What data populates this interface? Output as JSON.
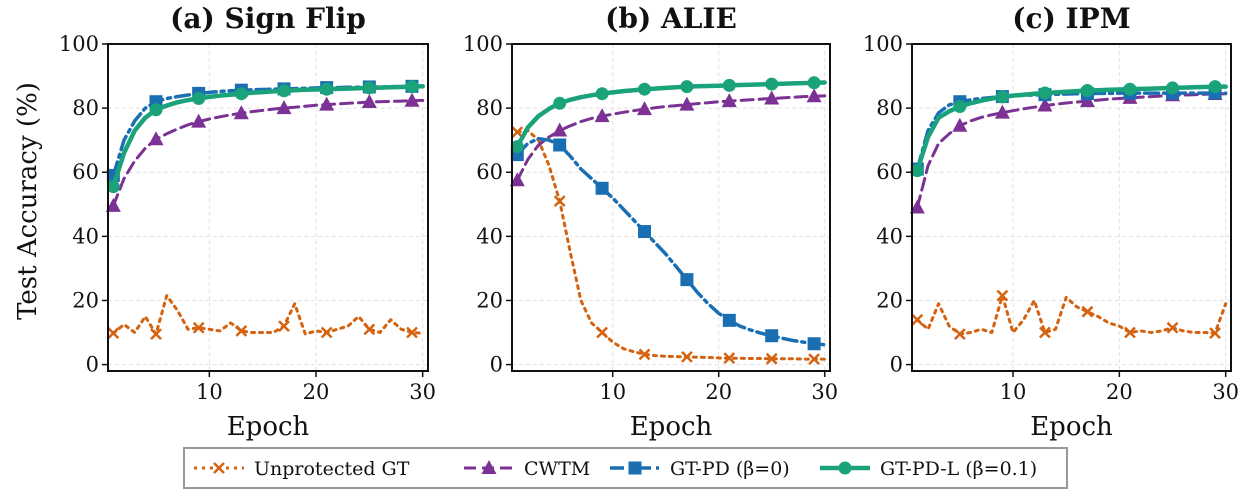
{
  "figure": {
    "ylabel": "Test Accuracy (%)"
  },
  "legend": {
    "placement": "bottom-center",
    "entries": [
      {
        "label": "Unprotected GT",
        "color": "#d4620f",
        "style": "dotted",
        "marker": "x"
      },
      {
        "label": "CWTM",
        "color": "#7b3294",
        "style": "dashed",
        "marker": "triangle"
      },
      {
        "label": "GT-PD (β=0)",
        "color": "#1a6fb3",
        "style": "dashdot",
        "marker": "square"
      },
      {
        "label": "GT-PD-L (β=0.1)",
        "color": "#1aa37a",
        "style": "solid",
        "marker": "circle"
      }
    ]
  },
  "chart_data": [
    {
      "type": "line",
      "title": "(a) Sign Flip",
      "xlabel": "Epoch",
      "ylabel": "Test Accuracy (%)",
      "xlim": [
        0.5,
        30.5
      ],
      "ylim": [
        -2,
        100
      ],
      "xticks": [
        10,
        20,
        30
      ],
      "yticks": [
        0,
        20,
        40,
        60,
        80,
        100
      ],
      "grid": true,
      "series": [
        {
          "name": "Unprotected GT",
          "color": "#d4620f",
          "dash": "3 5",
          "width": 3,
          "marker": "x",
          "x": [
            1,
            2,
            3,
            4,
            5,
            6,
            7,
            8,
            9,
            10,
            11,
            12,
            13,
            14,
            15,
            16,
            17,
            18,
            19,
            20,
            21,
            22,
            23,
            24,
            25,
            26,
            27,
            28,
            29,
            30
          ],
          "y": [
            9.8,
            12.5,
            10,
            15,
            9.5,
            21.5,
            17,
            11,
            11.5,
            11,
            10.5,
            13,
            10.5,
            10,
            10,
            10,
            12,
            19,
            9.5,
            10.5,
            10,
            11,
            12,
            15,
            11,
            10,
            14,
            11,
            10,
            9.8
          ],
          "markers_at": [
            1,
            5,
            9,
            13,
            17,
            21,
            25,
            29
          ]
        },
        {
          "name": "CWTM",
          "color": "#7b3294",
          "dash": "12 6",
          "width": 3,
          "marker": "triangle",
          "x": [
            1,
            2,
            3,
            4,
            5,
            6,
            7,
            8,
            9,
            10,
            11,
            12,
            13,
            14,
            15,
            16,
            17,
            18,
            19,
            20,
            21,
            22,
            23,
            24,
            25,
            26,
            27,
            28,
            29,
            30
          ],
          "y": [
            49.5,
            58,
            63.5,
            67.5,
            70.3,
            72,
            73.5,
            74.8,
            75.8,
            76.6,
            77.3,
            77.9,
            78.4,
            78.9,
            79.3,
            79.7,
            80,
            80.3,
            80.6,
            80.9,
            81.1,
            81.3,
            81.5,
            81.7,
            81.9,
            82,
            82.1,
            82.2,
            82.3,
            82.4
          ],
          "markers_at": [
            1,
            5,
            9,
            13,
            17,
            21,
            25,
            29
          ]
        },
        {
          "name": "GT-PD (β=0)",
          "color": "#1a6fb3",
          "dash": "14 5 3 5",
          "width": 3.5,
          "marker": "square",
          "x": [
            1,
            2,
            3,
            4,
            5,
            6,
            7,
            8,
            9,
            10,
            11,
            12,
            13,
            14,
            15,
            16,
            17,
            18,
            19,
            20,
            21,
            22,
            23,
            24,
            25,
            26,
            27,
            28,
            29,
            30
          ],
          "y": [
            59,
            70,
            76,
            80,
            82,
            83,
            83.6,
            84.1,
            84.6,
            84.9,
            85.2,
            85.4,
            85.6,
            85.7,
            85.8,
            85.9,
            86,
            86.1,
            86.2,
            86.3,
            86.4,
            86.4,
            86.5,
            86.5,
            86.6,
            86.6,
            86.7,
            86.7,
            86.8,
            86.8
          ],
          "markers_at": [
            1,
            5,
            9,
            13,
            17,
            21,
            25,
            29
          ]
        },
        {
          "name": "GT-PD-L (β=0.1)",
          "color": "#1aa37a",
          "dash": "",
          "width": 4.5,
          "marker": "circle",
          "x": [
            1,
            2,
            3,
            4,
            5,
            6,
            7,
            8,
            9,
            10,
            11,
            12,
            13,
            14,
            15,
            16,
            17,
            18,
            19,
            20,
            21,
            22,
            23,
            24,
            25,
            26,
            27,
            28,
            29,
            30
          ],
          "y": [
            55.5,
            66,
            73,
            77,
            79.5,
            80.8,
            81.8,
            82.5,
            83,
            83.5,
            83.9,
            84.2,
            84.5,
            84.8,
            85,
            85.2,
            85.4,
            85.6,
            85.7,
            85.8,
            85.9,
            86,
            86.1,
            86.2,
            86.3,
            86.4,
            86.5,
            86.6,
            86.7,
            86.8
          ],
          "markers_at": [
            1,
            5,
            9,
            13,
            17,
            21,
            25,
            29
          ]
        }
      ]
    },
    {
      "type": "line",
      "title": "(b) ALIE",
      "xlabel": "Epoch",
      "ylabel": "",
      "xlim": [
        0.5,
        30.5
      ],
      "ylim": [
        -2,
        100
      ],
      "xticks": [
        10,
        20,
        30
      ],
      "yticks": [
        0,
        20,
        40,
        60,
        80,
        100
      ],
      "grid": true,
      "series": [
        {
          "name": "Unprotected GT",
          "color": "#d4620f",
          "dash": "3 5",
          "width": 3,
          "marker": "x",
          "x": [
            1,
            2,
            3,
            4,
            5,
            6,
            7,
            8,
            9,
            10,
            11,
            12,
            13,
            14,
            15,
            16,
            17,
            18,
            19,
            20,
            21,
            22,
            23,
            24,
            25,
            26,
            27,
            28,
            29,
            30
          ],
          "y": [
            72.5,
            73,
            70,
            62,
            51,
            35,
            20,
            13,
            10,
            7,
            5,
            4,
            3.2,
            2.8,
            2.6,
            2.5,
            2.4,
            2.3,
            2.2,
            2.1,
            2,
            2,
            1.9,
            1.9,
            1.8,
            1.8,
            1.8,
            1.7,
            1.7,
            1.7
          ],
          "markers_at": [
            1,
            5,
            9,
            13,
            17,
            21,
            25,
            29
          ]
        },
        {
          "name": "CWTM",
          "color": "#7b3294",
          "dash": "12 6",
          "width": 3,
          "marker": "triangle",
          "x": [
            1,
            2,
            3,
            4,
            5,
            6,
            7,
            8,
            9,
            10,
            11,
            12,
            13,
            14,
            15,
            16,
            17,
            18,
            19,
            20,
            21,
            22,
            23,
            24,
            25,
            26,
            27,
            28,
            29,
            30
          ],
          "y": [
            57.5,
            64,
            68.5,
            71,
            73,
            74.5,
            75.8,
            76.8,
            77.5,
            78.1,
            78.7,
            79.2,
            79.7,
            80.1,
            80.5,
            80.8,
            81.1,
            81.4,
            81.7,
            82,
            82.2,
            82.4,
            82.6,
            82.8,
            83,
            83.2,
            83.4,
            83.6,
            83.7,
            83.8
          ],
          "markers_at": [
            1,
            5,
            9,
            13,
            17,
            21,
            25,
            29
          ]
        },
        {
          "name": "GT-PD (β=0)",
          "color": "#1a6fb3",
          "dash": "14 5 3 5",
          "width": 3.5,
          "marker": "square",
          "x": [
            1,
            2,
            3,
            4,
            5,
            6,
            7,
            8,
            9,
            10,
            11,
            12,
            13,
            14,
            15,
            16,
            17,
            18,
            19,
            20,
            21,
            22,
            23,
            24,
            25,
            26,
            27,
            28,
            29,
            30
          ],
          "y": [
            65.5,
            69,
            70.5,
            70,
            68.5,
            65,
            61,
            58,
            55,
            52,
            48.5,
            45,
            41.5,
            38,
            34.5,
            30.5,
            26.5,
            22.5,
            19,
            16,
            13.8,
            12,
            10.8,
            9.8,
            9,
            8.2,
            7.5,
            7,
            6.5,
            6.2
          ],
          "markers_at": [
            1,
            5,
            9,
            13,
            17,
            21,
            25,
            29
          ]
        },
        {
          "name": "GT-PD-L (β=0.1)",
          "color": "#1aa37a",
          "dash": "",
          "width": 4.5,
          "marker": "circle",
          "x": [
            1,
            2,
            3,
            4,
            5,
            6,
            7,
            8,
            9,
            10,
            11,
            12,
            13,
            14,
            15,
            16,
            17,
            18,
            19,
            20,
            21,
            22,
            23,
            24,
            25,
            26,
            27,
            28,
            29,
            30
          ],
          "y": [
            68,
            74,
            77.5,
            79.8,
            81.5,
            82.6,
            83.4,
            84,
            84.5,
            84.9,
            85.3,
            85.6,
            85.9,
            86.1,
            86.3,
            86.5,
            86.7,
            86.8,
            86.9,
            87,
            87.1,
            87.2,
            87.3,
            87.4,
            87.5,
            87.6,
            87.7,
            87.8,
            87.9,
            88
          ],
          "markers_at": [
            1,
            5,
            9,
            13,
            17,
            21,
            25,
            29
          ]
        }
      ]
    },
    {
      "type": "line",
      "title": "(c) IPM",
      "xlabel": "Epoch",
      "ylabel": "",
      "xlim": [
        0.5,
        30.5
      ],
      "ylim": [
        -2,
        100
      ],
      "xticks": [
        10,
        20,
        30
      ],
      "yticks": [
        0,
        20,
        40,
        60,
        80,
        100
      ],
      "grid": true,
      "series": [
        {
          "name": "Unprotected GT",
          "color": "#d4620f",
          "dash": "3 5",
          "width": 3,
          "marker": "x",
          "x": [
            1,
            2,
            3,
            4,
            5,
            6,
            7,
            8,
            9,
            10,
            11,
            12,
            13,
            14,
            15,
            16,
            17,
            18,
            19,
            20,
            21,
            22,
            23,
            24,
            25,
            26,
            27,
            28,
            29,
            30
          ],
          "y": [
            14,
            11,
            19,
            12,
            9.5,
            10,
            11,
            10,
            21.5,
            10,
            14,
            20,
            10,
            11,
            21,
            18,
            16.5,
            15,
            13,
            12,
            10,
            10.5,
            10,
            10.5,
            11.5,
            10.5,
            10,
            10,
            9.8,
            19
          ],
          "markers_at": [
            1,
            5,
            9,
            13,
            17,
            21,
            25,
            29
          ]
        },
        {
          "name": "CWTM",
          "color": "#7b3294",
          "dash": "12 6",
          "width": 3,
          "marker": "triangle",
          "x": [
            1,
            2,
            3,
            4,
            5,
            6,
            7,
            8,
            9,
            10,
            11,
            12,
            13,
            14,
            15,
            16,
            17,
            18,
            19,
            20,
            21,
            22,
            23,
            24,
            25,
            26,
            27,
            28,
            29,
            30
          ],
          "y": [
            49,
            62,
            69,
            72,
            74.5,
            76,
            77.1,
            77.9,
            78.6,
            79.2,
            79.8,
            80.3,
            80.8,
            81.2,
            81.6,
            81.9,
            82.2,
            82.5,
            82.8,
            83,
            83.2,
            83.4,
            83.6,
            83.8,
            84,
            84.1,
            84.2,
            84.3,
            84.4,
            84.5
          ],
          "markers_at": [
            1,
            5,
            9,
            13,
            17,
            21,
            25,
            29
          ]
        },
        {
          "name": "GT-PD (β=0)",
          "color": "#1a6fb3",
          "dash": "14 5 3 5",
          "width": 3.5,
          "marker": "square",
          "x": [
            1,
            2,
            3,
            4,
            5,
            6,
            7,
            8,
            9,
            10,
            11,
            12,
            13,
            14,
            15,
            16,
            17,
            18,
            19,
            20,
            21,
            22,
            23,
            24,
            25,
            26,
            27,
            28,
            29,
            30
          ],
          "y": [
            61,
            73,
            78.5,
            81,
            82,
            82.6,
            83,
            83.3,
            83.6,
            83.8,
            84,
            84.1,
            84.2,
            84.3,
            84.4,
            84.5,
            84.5,
            84.6,
            84.6,
            84.7,
            84.7,
            84.7,
            84.7,
            84.7,
            84.7,
            84.7,
            84.7,
            84.7,
            84.7,
            84.7
          ],
          "markers_at": [
            1,
            5,
            9,
            13,
            17,
            21,
            25,
            29
          ]
        },
        {
          "name": "GT-PD-L (β=0.1)",
          "color": "#1aa37a",
          "dash": "",
          "width": 4.5,
          "marker": "circle",
          "x": [
            1,
            2,
            3,
            4,
            5,
            6,
            7,
            8,
            9,
            10,
            11,
            12,
            13,
            14,
            15,
            16,
            17,
            18,
            19,
            20,
            21,
            22,
            23,
            24,
            25,
            26,
            27,
            28,
            29,
            30
          ],
          "y": [
            60.5,
            71,
            77,
            79,
            80.5,
            81.5,
            82.3,
            83,
            83.5,
            83.9,
            84.2,
            84.5,
            84.7,
            84.9,
            85.1,
            85.3,
            85.5,
            85.6,
            85.7,
            85.8,
            85.9,
            86,
            86.1,
            86.2,
            86.3,
            86.4,
            86.5,
            86.6,
            86.7,
            86.7
          ],
          "markers_at": [
            1,
            5,
            9,
            13,
            17,
            21,
            25,
            29
          ]
        }
      ]
    }
  ]
}
